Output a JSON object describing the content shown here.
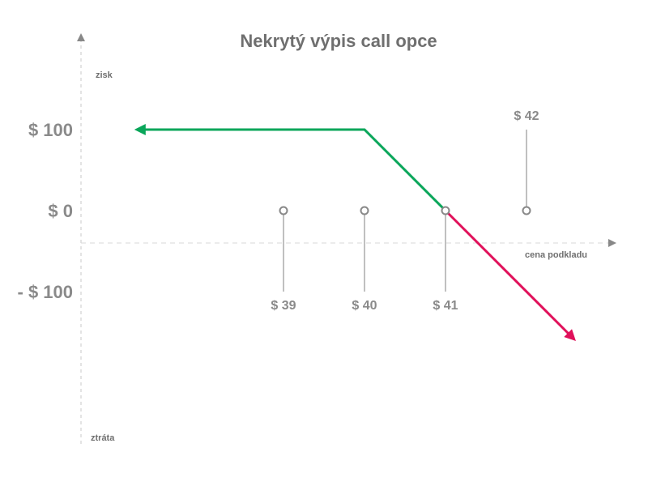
{
  "chart_data": {
    "type": "line",
    "title": "Nekrytý výpis call opce",
    "xlabel": "cena podkladu",
    "ylabel_top": "zisk",
    "ylabel_bottom": "ztráta",
    "y_ticks": [
      {
        "value": 100,
        "label": "$ 100"
      },
      {
        "value": 0,
        "label": "$ 0"
      },
      {
        "value": -100,
        "label": "- $ 100"
      }
    ],
    "x_markers": [
      {
        "value": 39,
        "label": "$ 39",
        "label_side": "below"
      },
      {
        "value": 40,
        "label": "$ 40",
        "label_side": "below"
      },
      {
        "value": 41,
        "label": "$ 41",
        "label_side": "below"
      },
      {
        "value": 42,
        "label": "$ 42",
        "label_side": "above"
      }
    ],
    "xlim": [
      36.5,
      43
    ],
    "ylim": [
      -250,
      210
    ],
    "series": [
      {
        "segment": "profit",
        "color": "#0aa65a",
        "points": [
          [
            37.2,
            100
          ],
          [
            40,
            100
          ],
          [
            41,
            0
          ]
        ]
      },
      {
        "segment": "loss",
        "color": "#e0105a",
        "points": [
          [
            41,
            0
          ],
          [
            42.58,
            -158
          ]
        ]
      }
    ],
    "grid": false,
    "legend": "none"
  }
}
